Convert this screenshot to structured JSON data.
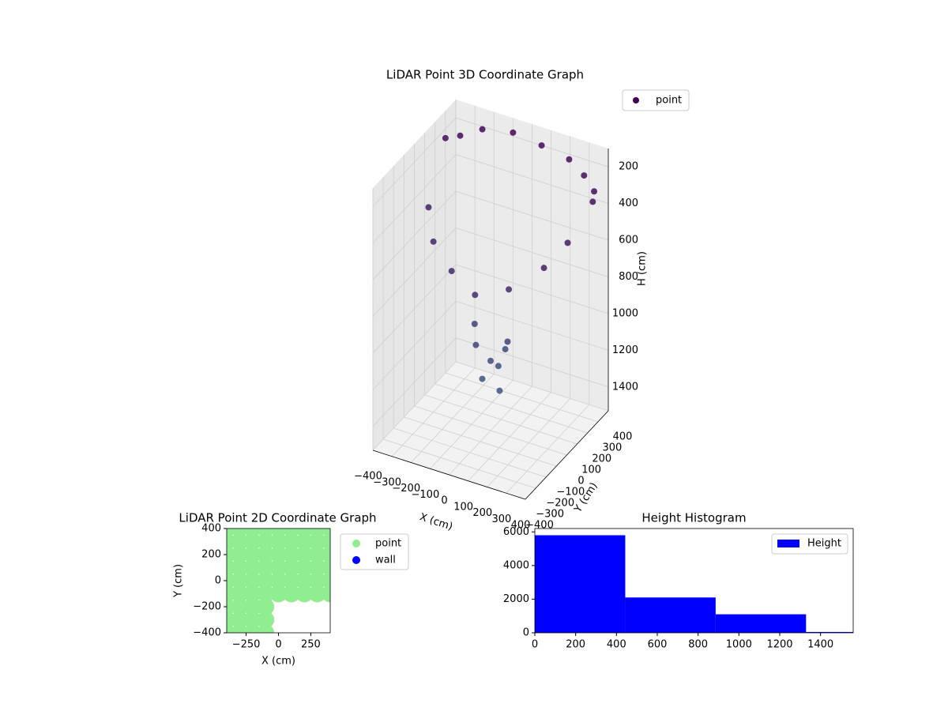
{
  "chart_data": [
    {
      "type": "scatter3d",
      "title": "LiDAR Point 3D Coordinate Graph",
      "xlabel": "X (cm)",
      "ylabel": "Y (cm)",
      "zlabel": "H (cm)",
      "xlim": [
        -400,
        400
      ],
      "ylim": [
        -400,
        400
      ],
      "hlim": [
        100,
        1530
      ],
      "h_inverted": true,
      "grid": true,
      "legend": "upper right",
      "colormap": [
        "#440154",
        "#3b6a8f"
      ],
      "xticks": [
        {
          "value": -400,
          "label": "−400"
        },
        {
          "value": -300,
          "label": "−300"
        },
        {
          "value": -200,
          "label": "−200"
        },
        {
          "value": -100,
          "label": "−100"
        },
        0,
        100,
        200,
        300,
        400
      ],
      "yticks": [
        {
          "value": -400,
          "label": "−400"
        },
        {
          "value": -300,
          "label": "−300"
        },
        {
          "value": -200,
          "label": "−200"
        },
        {
          "value": -100,
          "label": "−100"
        },
        0,
        100,
        200,
        300,
        400
      ],
      "hticks": [
        200,
        400,
        600,
        800,
        1000,
        1200,
        1400
      ],
      "series": [
        {
          "name": "point",
          "x": [
            -400,
            -350,
            -250,
            -100,
            50,
            200,
            300,
            380,
            400,
            -380,
            -300,
            -150,
            0,
            150,
            280,
            350,
            -50,
            0,
            50,
            100,
            -100,
            0,
            80,
            30
          ],
          "y": [
            300,
            350,
            380,
            400,
            400,
            390,
            350,
            300,
            250,
            100,
            0,
            -100,
            -150,
            -100,
            0,
            100,
            -50,
            0,
            50,
            -20,
            30,
            -80,
            -60,
            20
          ],
          "h": [
            250,
            250,
            200,
            180,
            200,
            220,
            250,
            280,
            300,
            500,
            600,
            650,
            700,
            650,
            550,
            450,
            1050,
            1150,
            1100,
            1000,
            1000,
            1200,
            1250,
            1180
          ]
        }
      ]
    },
    {
      "type": "scatter",
      "title": "LiDAR Point 2D Coordinate Graph",
      "xlabel": "X (cm)",
      "ylabel": "Y (cm)",
      "xlim": [
        -400,
        400
      ],
      "ylim": [
        -400,
        400
      ],
      "legend": "outside right",
      "xticks": [
        {
          "value": -250,
          "label": "−250"
        },
        0,
        250
      ],
      "yticks": [
        {
          "value": -400,
          "label": "−400"
        },
        {
          "value": -200,
          "label": "−200"
        },
        0,
        200,
        400
      ],
      "series": [
        {
          "name": "point",
          "color": "#90ee90",
          "x": [
            -400,
            -300,
            -200,
            -100,
            0,
            100,
            200,
            300,
            400,
            -400,
            -300,
            -200,
            -100,
            0,
            100,
            200,
            300,
            400,
            -400,
            -300,
            -200,
            -100,
            0,
            100,
            200,
            300,
            400,
            -400,
            -300,
            -200,
            -100,
            0,
            100,
            200,
            300,
            400,
            -400,
            -300,
            -200,
            -100,
            0,
            100,
            200,
            300,
            400,
            -400,
            -300,
            -200,
            -100,
            0,
            100,
            200,
            300,
            400,
            -400,
            -300,
            -200,
            -100,
            -400,
            -300,
            -200,
            -100,
            -400,
            -300,
            -200,
            -100
          ],
          "y": [
            400,
            400,
            400,
            400,
            400,
            400,
            400,
            400,
            400,
            300,
            300,
            300,
            300,
            300,
            300,
            300,
            300,
            300,
            200,
            200,
            200,
            200,
            200,
            200,
            200,
            200,
            200,
            100,
            100,
            100,
            100,
            100,
            100,
            100,
            100,
            100,
            0,
            0,
            0,
            0,
            0,
            0,
            0,
            0,
            0,
            -100,
            -100,
            -100,
            -100,
            -100,
            -100,
            -100,
            -100,
            -100,
            -200,
            -200,
            -200,
            -200,
            -300,
            -300,
            -300,
            -300,
            -400,
            -400,
            -400,
            -400
          ]
        },
        {
          "name": "wall",
          "color": "#0000ff",
          "x": [],
          "y": []
        }
      ]
    },
    {
      "type": "histogram",
      "title": "Height Histogram",
      "legend": "upper right",
      "series": [
        {
          "name": "Height",
          "color": "#0000ff",
          "bins": [
            0,
            443,
            886,
            1329,
            1772
          ],
          "values": [
            5800,
            2100,
            1100,
            50
          ]
        }
      ],
      "xlim": [
        0,
        1560
      ],
      "ylim": [
        0,
        6200
      ],
      "xticks": [
        0,
        200,
        400,
        600,
        800,
        1000,
        1200,
        1400
      ],
      "yticks": [
        0,
        2000,
        4000,
        6000
      ]
    }
  ]
}
